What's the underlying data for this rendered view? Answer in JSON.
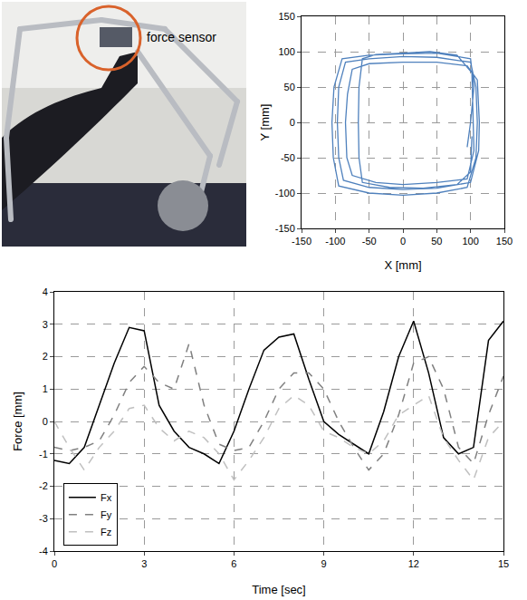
{
  "photo": {
    "annotation": "force sensor"
  },
  "chart_data": [
    {
      "type": "line",
      "x_label": "X [mm]",
      "y_label": "Y [mm]",
      "x": [
        95,
        100,
        105,
        100,
        50,
        0,
        -50,
        -90,
        -102,
        -105,
        -103,
        -95,
        -50,
        0,
        50,
        95,
        108,
        110,
        108,
        100,
        50,
        0,
        -50,
        -85,
        -95,
        -97,
        -95,
        -88,
        -50,
        0,
        50,
        100,
        112,
        113,
        110,
        95,
        50,
        0,
        -50,
        -75,
        -82,
        -85,
        -83,
        -75,
        -40,
        0,
        50,
        95,
        105,
        104,
        102,
        80,
        40,
        0,
        -40,
        -60,
        -65,
        -66,
        -65,
        -60,
        -20,
        30,
        80,
        100,
        102
      ],
      "values": [
        -35,
        0,
        50,
        90,
        98,
        97,
        95,
        90,
        50,
        0,
        -50,
        -90,
        -100,
        -103,
        -100,
        -92,
        -50,
        0,
        50,
        85,
        92,
        93,
        90,
        85,
        50,
        0,
        -50,
        -82,
        -92,
        -95,
        -93,
        -85,
        -40,
        0,
        60,
        80,
        85,
        85,
        83,
        75,
        40,
        0,
        -50,
        -75,
        -85,
        -88,
        -85,
        -80,
        -40,
        0,
        70,
        95,
        100,
        98,
        96,
        90,
        50,
        0,
        -50,
        -85,
        -92,
        -93,
        -88,
        -70,
        -20
      ],
      "color": "#4f81bd",
      "line_style": "solid",
      "xlim": [
        -150,
        150
      ],
      "xticks": [
        -150,
        -100,
        -50,
        0,
        50,
        100,
        150
      ],
      "ylim": [
        -150,
        150
      ],
      "yticks": [
        -150,
        -100,
        -50,
        0,
        50,
        100,
        150
      ],
      "grid": true
    },
    {
      "type": "line",
      "x_label": "Time [sec]",
      "y_label": "Force [mm]",
      "x": [
        0,
        0.5,
        1,
        1.5,
        2,
        2.5,
        3,
        3.5,
        4,
        4.5,
        5,
        5.5,
        6,
        6.5,
        7,
        7.5,
        8,
        8.5,
        9,
        9.5,
        10,
        10.5,
        11,
        11.5,
        12,
        12.5,
        13,
        13.5,
        14,
        14.5,
        15
      ],
      "series": [
        {
          "name": "Fx",
          "color": "#000000",
          "line_style": "solid",
          "values": [
            -1.2,
            -1.3,
            -0.8,
            0.5,
            1.8,
            2.9,
            2.8,
            0.5,
            -0.3,
            -0.8,
            -1.0,
            -1.3,
            -0.3,
            1.0,
            2.2,
            2.6,
            2.7,
            1.3,
            0.0,
            -0.4,
            -0.7,
            -1.0,
            0.3,
            2.0,
            3.1,
            1.5,
            -0.5,
            -1.0,
            -0.8,
            2.5,
            3.1
          ]
        },
        {
          "name": "Fy",
          "color": "#808080",
          "line_style": "dashed",
          "values": [
            -0.8,
            -0.9,
            -0.8,
            -0.6,
            0.2,
            1.2,
            1.7,
            1.2,
            1.0,
            2.4,
            0.5,
            -0.7,
            -0.9,
            -0.8,
            0.0,
            1.0,
            1.5,
            1.5,
            1.0,
            0.0,
            -0.8,
            -1.5,
            -1.0,
            0.2,
            1.8,
            2.0,
            1.0,
            -0.8,
            -1.3,
            0.2,
            1.4
          ]
        },
        {
          "name": "Fz",
          "color": "#c0c0c0",
          "line_style": "dashed",
          "values": [
            0.0,
            -0.8,
            -1.5,
            -0.8,
            -0.3,
            0.4,
            0.5,
            -0.2,
            -0.6,
            -0.3,
            -0.5,
            -1.0,
            -1.8,
            -1.2,
            -0.5,
            0.4,
            0.8,
            0.5,
            -0.3,
            -0.5,
            -0.8,
            -1.0,
            -0.6,
            0.2,
            0.5,
            0.8,
            -0.5,
            -1.2,
            -1.8,
            -0.5,
            0.0
          ]
        }
      ],
      "xlim": [
        0,
        15
      ],
      "xticks": [
        0,
        3,
        6,
        9,
        12,
        15
      ],
      "ylim": [
        -4,
        4
      ],
      "yticks": [
        -4,
        -3,
        -2,
        -1,
        0,
        1,
        2,
        3,
        4
      ],
      "grid": true,
      "legend": "lower left"
    }
  ]
}
